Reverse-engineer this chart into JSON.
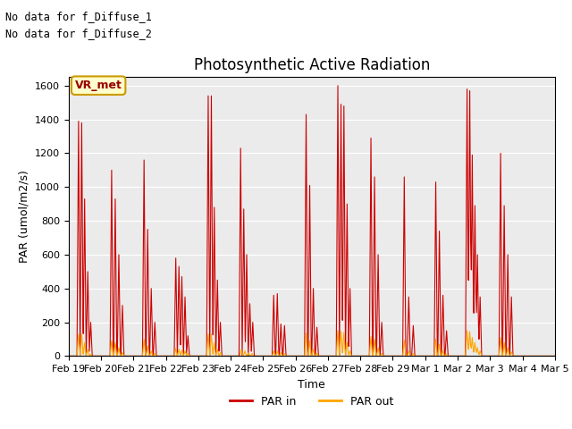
{
  "title": "Photosynthetic Active Radiation",
  "xlabel": "Time",
  "ylabel": "PAR (umol/m2/s)",
  "ylim": [
    0,
    1650
  ],
  "yticks": [
    0,
    200,
    400,
    600,
    800,
    1000,
    1200,
    1400,
    1600
  ],
  "bg_color": "#ebebeb",
  "fig_color": "#ffffff",
  "legend_labels": [
    "PAR in",
    "PAR out"
  ],
  "legend_colors": [
    "#cc0000",
    "#ffa500"
  ],
  "text_annotations": [
    "No data for f_Diffuse_1",
    "No data for f_Diffuse_2"
  ],
  "box_label": "VR_met",
  "box_facecolor": "#ffffcc",
  "box_edgecolor": "#cc9900",
  "box_textcolor": "#990000",
  "date_labels": [
    "Feb 19",
    "Feb 20",
    "Feb 21",
    "Feb 22",
    "Feb 23",
    "Feb 24",
    "Feb 25",
    "Feb 26",
    "Feb 27",
    "Feb 28",
    "Feb 29",
    "Mar 1",
    "Mar 2",
    "Mar 3",
    "Mar 4",
    "Mar 5"
  ],
  "n_points_per_day": 144,
  "n_days": 15,
  "days_par_in": [
    [
      1390,
      1380,
      930,
      500,
      200
    ],
    [
      1100,
      930,
      600,
      300
    ],
    [
      1160,
      750,
      400,
      200
    ],
    [
      580,
      530,
      470,
      350,
      120
    ],
    [
      1540,
      1540,
      880,
      450,
      200
    ],
    [
      1230,
      870,
      600,
      310,
      200
    ],
    [
      360,
      370,
      190,
      180
    ],
    [
      1430,
      1010,
      400,
      170
    ],
    [
      1600,
      1490,
      1480,
      900,
      400
    ],
    [
      1290,
      1060,
      600,
      200
    ],
    [
      1060,
      350,
      180
    ],
    [
      1030,
      740,
      360,
      150
    ],
    [
      1580,
      1570,
      1190,
      890,
      600,
      350
    ],
    [
      1200,
      890,
      600,
      350
    ],
    []
  ],
  "days_par_out": [
    [
      130,
      130,
      80,
      40,
      10
    ],
    [
      90,
      80,
      50,
      20
    ],
    [
      100,
      60,
      30,
      15
    ],
    [
      45,
      40,
      35,
      30,
      15
    ],
    [
      130,
      130,
      80,
      40,
      20
    ],
    [
      40,
      30,
      20,
      15
    ],
    [
      30,
      30,
      20,
      15
    ],
    [
      135,
      90,
      40,
      15
    ],
    [
      150,
      145,
      140,
      80,
      30
    ],
    [
      115,
      100,
      50,
      15
    ],
    [
      95,
      30,
      15
    ],
    [
      100,
      70,
      30,
      12
    ],
    [
      150,
      145,
      110,
      80,
      50,
      30
    ],
    [
      110,
      80,
      50,
      25
    ],
    []
  ]
}
